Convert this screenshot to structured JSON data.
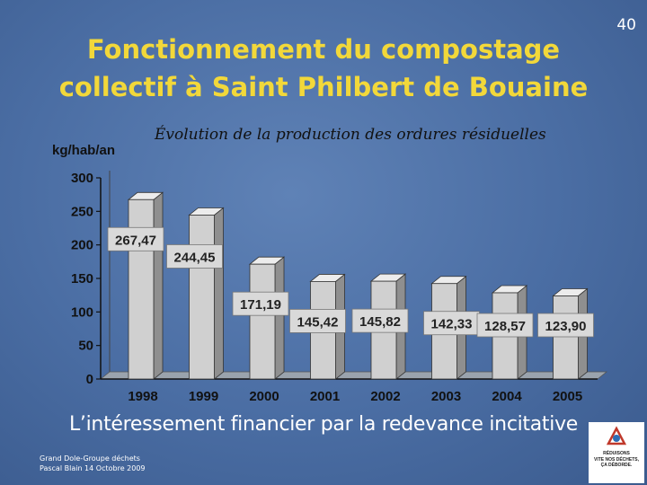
{
  "slide": {
    "page_number": "40",
    "title_line1": "Fonctionnement du compostage",
    "title_line2": "collectif à Saint Philbert de Bouaine",
    "subtitle": "L’intéressement financier par la redevance incitative",
    "credit_line1": "Grand Dole-Groupe déchets",
    "credit_line2": "Pascal Blain 14 Octobre 2009",
    "logo": {
      "icon": "recycling-logo-icon",
      "text_lines": [
        "RÉDUISONS",
        "VITE NOS DÉCHETS,",
        "ÇA DÉBORDE."
      ]
    },
    "colors": {
      "title": "#f2d83a",
      "background": "#4a6da3",
      "bar_face": "#d0d0d0",
      "bar_side": "#8f8f8f",
      "bar_top": "#ececec"
    }
  },
  "chart_data": {
    "type": "bar",
    "title": "Évolution de la production des ordures résiduelles",
    "ylabel": "kg/hab/an",
    "xlabel": "",
    "categories": [
      "1998",
      "1999",
      "2000",
      "2001",
      "2002",
      "2003",
      "2004",
      "2005"
    ],
    "values": [
      267.47,
      244.45,
      171.19,
      145.42,
      145.82,
      142.33,
      128.57,
      123.9
    ],
    "value_labels": [
      "267,47",
      "244,45",
      "171,19",
      "145,42",
      "145,82",
      "142,33",
      "128,57",
      "123,90"
    ],
    "yticks": [
      0,
      50,
      100,
      150,
      200,
      250,
      300
    ],
    "ylim": [
      0,
      300
    ],
    "grid": false,
    "legend": "none",
    "style": "3d-bars"
  }
}
